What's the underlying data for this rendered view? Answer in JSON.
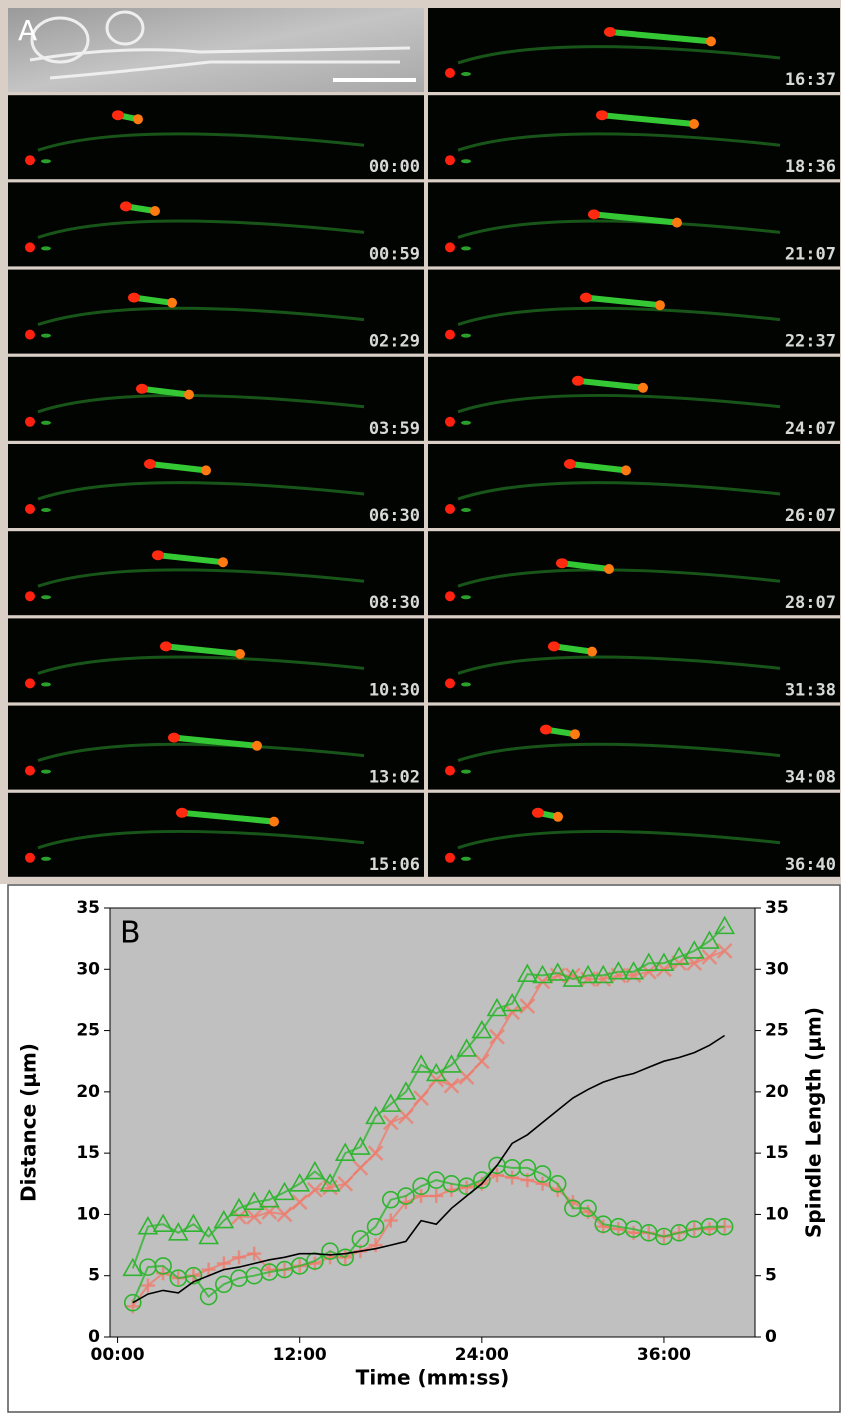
{
  "panel_a": {
    "label": "A",
    "left_times": [
      "00:00",
      "00:59",
      "02:29",
      "03:59",
      "06:30",
      "08:30",
      "10:30",
      "13:02",
      "15:06"
    ],
    "right_times": [
      "16:37",
      "18:36",
      "21:07",
      "22:37",
      "24:07",
      "26:07",
      "28:07",
      "31:38",
      "34:08",
      "36:40"
    ]
  },
  "chart_data": {
    "type": "line",
    "panel_label": "B",
    "x_label": "Time (mm:ss)",
    "y_label": "Distance (μm)",
    "y2_label": "Spindle Length (μm)",
    "x": [
      1,
      2,
      3,
      4,
      5,
      6,
      7,
      8,
      9,
      10,
      11,
      12,
      13,
      14,
      15,
      16,
      17,
      18,
      19,
      20,
      21,
      22,
      23,
      24,
      25,
      26,
      27,
      28,
      29,
      30,
      31,
      32,
      33,
      34,
      35,
      36,
      37,
      38,
      39,
      40
    ],
    "xlim": [
      -0.5,
      42
    ],
    "xticks": [
      {
        "value": 0,
        "label": "00:00"
      },
      {
        "value": 12,
        "label": "12:00"
      },
      {
        "value": 24,
        "label": "24:00"
      },
      {
        "value": 36,
        "label": "36:00"
      }
    ],
    "ylim": [
      0,
      35
    ],
    "yticks": [
      0,
      5,
      10,
      15,
      20,
      25,
      30,
      35
    ],
    "y2lim": [
      0,
      35
    ],
    "y2ticks": [
      0,
      5,
      10,
      15,
      20,
      25,
      30,
      35
    ],
    "background": "#c0c0c0",
    "series": [
      {
        "color": "#f07a6a",
        "marker": "x",
        "values": [
          null,
          null,
          null,
          null,
          null,
          null,
          null,
          9.8,
          9.8,
          10.2,
          10.0,
          11.0,
          12.0,
          12.2,
          12.5,
          13.8,
          15.0,
          17.5,
          18.0,
          19.5,
          21.0,
          20.5,
          21.2,
          22.5,
          24.5,
          26.5,
          27.0,
          29.0,
          29.5,
          29.5,
          29.2,
          29.2,
          29.5,
          29.5,
          29.8,
          30.0,
          30.5,
          30.5,
          31.0,
          31.5
        ]
      },
      {
        "color": "#f07a6a",
        "marker": "plus",
        "values": [
          2.5,
          4.2,
          5.2,
          4.8,
          5.0,
          5.5,
          6.0,
          6.5,
          6.8,
          5.5,
          5.5,
          5.8,
          6.0,
          6.5,
          6.5,
          7.0,
          7.5,
          9.5,
          11.0,
          11.5,
          11.5,
          12.0,
          12.2,
          12.5,
          13.2,
          13.0,
          12.8,
          12.5,
          12.0,
          11.0,
          10.2,
          9.0,
          8.8,
          8.5,
          8.5,
          8.2,
          8.5,
          8.8,
          8.8,
          9.0
        ]
      },
      {
        "color": "#2fb52f",
        "marker": "triangle",
        "values": [
          5.6,
          9.0,
          9.2,
          8.5,
          9.2,
          8.2,
          9.5,
          10.5,
          11.0,
          11.2,
          11.8,
          12.5,
          13.5,
          12.5,
          15.0,
          15.5,
          18.0,
          19.0,
          20.0,
          22.2,
          21.5,
          22.2,
          23.5,
          25.0,
          26.8,
          27.2,
          29.6,
          29.5,
          29.7,
          29.2,
          29.5,
          29.5,
          29.8,
          29.8,
          30.5,
          30.5,
          31.0,
          31.5,
          32.3,
          33.5
        ]
      },
      {
        "color": "#2fb52f",
        "marker": "circle",
        "values": [
          2.8,
          5.7,
          5.8,
          4.8,
          5.0,
          3.3,
          4.3,
          4.8,
          5.0,
          5.3,
          5.5,
          5.8,
          6.2,
          7.0,
          6.5,
          8.0,
          9.0,
          11.2,
          11.5,
          12.3,
          12.8,
          12.5,
          12.3,
          12.8,
          14.0,
          13.8,
          13.8,
          13.3,
          12.5,
          10.5,
          10.5,
          9.2,
          9.0,
          8.8,
          8.5,
          8.2,
          8.5,
          8.8,
          9.0,
          9.0
        ]
      },
      {
        "color": "#000000",
        "marker": "none",
        "axis": "y2",
        "values": [
          2.8,
          3.5,
          3.8,
          3.6,
          4.5,
          5.0,
          5.5,
          5.7,
          6.0,
          6.3,
          6.5,
          6.8,
          6.8,
          6.7,
          6.8,
          7.0,
          7.2,
          7.5,
          7.8,
          9.5,
          9.2,
          10.5,
          11.5,
          12.5,
          14.0,
          15.8,
          16.5,
          17.5,
          18.5,
          19.5,
          20.2,
          20.8,
          21.2,
          21.5,
          22.0,
          22.5,
          22.8,
          23.2,
          23.8,
          24.6
        ]
      }
    ]
  }
}
